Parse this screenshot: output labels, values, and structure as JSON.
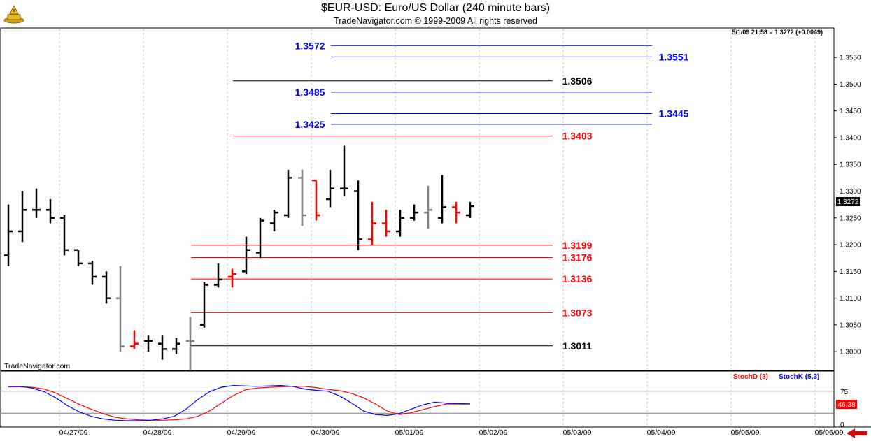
{
  "header": {
    "title": "$EUR-USD:  Euro/US Dollar  (240 minute bars)",
    "subtitle": "TradeNavigator.com © 1999-2009 All rights reserved",
    "last_quote": "5/1/09 21:58 = 1.3272 (+0.0049)",
    "watermark": "TradeNavigator.com"
  },
  "colors": {
    "up_bar": "#000000",
    "down_bar": "#ff0000",
    "neutral_bar": "#808080",
    "blue_level": "#0000ff",
    "red_level": "#ff0000",
    "black_level": "#000000",
    "stoch_d": "#ff0000",
    "stoch_k": "#0000ff",
    "price_badge_bg": "#000000",
    "stoch_badge_bg": "#ff0000"
  },
  "chart_data": [
    {
      "type": "ohlc",
      "title": "$EUR-USD:  Euro/US Dollar  (240 minute bars)",
      "x_tick_labels": [
        "04/27/09",
        "04/28/09",
        "04/29/09",
        "04/30/09",
        "05/01/09",
        "05/02/09",
        "05/03/09",
        "05/04/09",
        "05/05/09",
        "05/06/09"
      ],
      "y_tick_labels": [
        "1.3000",
        "1.3050",
        "1.3100",
        "1.3150",
        "1.3200",
        "1.3250",
        "1.3300",
        "1.3350",
        "1.3400",
        "1.3450",
        "1.3500",
        "1.3550"
      ],
      "ylim": [
        1.2965,
        1.3605
      ],
      "grid": "vertical dashed at date ticks",
      "last_price_badge": "1.3272",
      "bars": [
        {
          "o": 1.318,
          "h": 1.3275,
          "l": 1.316,
          "c": 1.3225,
          "color": "black"
        },
        {
          "o": 1.3225,
          "h": 1.33,
          "l": 1.3205,
          "c": 1.3265,
          "color": "black"
        },
        {
          "o": 1.3265,
          "h": 1.3305,
          "l": 1.325,
          "c": 1.3265,
          "color": "black"
        },
        {
          "o": 1.3265,
          "h": 1.3285,
          "l": 1.324,
          "c": 1.325,
          "color": "black"
        },
        {
          "o": 1.325,
          "h": 1.3255,
          "l": 1.318,
          "c": 1.319,
          "color": "black"
        },
        {
          "o": 1.319,
          "h": 1.319,
          "l": 1.316,
          "c": 1.3165,
          "color": "black"
        },
        {
          "o": 1.3165,
          "h": 1.317,
          "l": 1.3125,
          "c": 1.314,
          "color": "black"
        },
        {
          "o": 1.314,
          "h": 1.315,
          "l": 1.309,
          "c": 1.31,
          "color": "black"
        },
        {
          "o": 1.31,
          "h": 1.316,
          "l": 1.3,
          "c": 1.301,
          "color": "gray"
        },
        {
          "o": 1.301,
          "h": 1.304,
          "l": 1.3005,
          "c": 1.3015,
          "color": "red"
        },
        {
          "o": 1.302,
          "h": 1.303,
          "l": 1.3,
          "c": 1.302,
          "color": "black"
        },
        {
          "o": 1.3015,
          "h": 1.303,
          "l": 1.2985,
          "c": 1.3005,
          "color": "black"
        },
        {
          "o": 1.3005,
          "h": 1.3025,
          "l": 1.2995,
          "c": 1.3015,
          "color": "black"
        },
        {
          "o": 1.302,
          "h": 1.3065,
          "l": 1.2965,
          "c": 1.302,
          "color": "gray"
        },
        {
          "o": 1.305,
          "h": 1.313,
          "l": 1.3045,
          "c": 1.3125,
          "color": "black"
        },
        {
          "o": 1.3125,
          "h": 1.3165,
          "l": 1.312,
          "c": 1.3135,
          "color": "black"
        },
        {
          "o": 1.314,
          "h": 1.3155,
          "l": 1.312,
          "c": 1.3145,
          "color": "red"
        },
        {
          "o": 1.315,
          "h": 1.3215,
          "l": 1.3145,
          "c": 1.319,
          "color": "black"
        },
        {
          "o": 1.3185,
          "h": 1.325,
          "l": 1.3175,
          "c": 1.3245,
          "color": "black"
        },
        {
          "o": 1.324,
          "h": 1.3265,
          "l": 1.3225,
          "c": 1.326,
          "color": "black"
        },
        {
          "o": 1.3255,
          "h": 1.334,
          "l": 1.325,
          "c": 1.3325,
          "color": "black"
        },
        {
          "o": 1.3325,
          "h": 1.334,
          "l": 1.3235,
          "c": 1.3255,
          "color": "gray"
        },
        {
          "o": 1.332,
          "h": 1.332,
          "l": 1.3245,
          "c": 1.3255,
          "color": "red"
        },
        {
          "o": 1.3285,
          "h": 1.334,
          "l": 1.327,
          "c": 1.3305,
          "color": "black"
        },
        {
          "o": 1.3305,
          "h": 1.3385,
          "l": 1.329,
          "c": 1.3305,
          "color": "black"
        },
        {
          "o": 1.33,
          "h": 1.332,
          "l": 1.319,
          "c": 1.321,
          "color": "black"
        },
        {
          "o": 1.321,
          "h": 1.328,
          "l": 1.32,
          "c": 1.324,
          "color": "red"
        },
        {
          "o": 1.324,
          "h": 1.3265,
          "l": 1.3215,
          "c": 1.3225,
          "color": "red"
        },
        {
          "o": 1.3225,
          "h": 1.3265,
          "l": 1.3215,
          "c": 1.325,
          "color": "black"
        },
        {
          "o": 1.325,
          "h": 1.3275,
          "l": 1.3245,
          "c": 1.326,
          "color": "black"
        },
        {
          "o": 1.326,
          "h": 1.331,
          "l": 1.323,
          "c": 1.3265,
          "color": "gray"
        },
        {
          "o": 1.325,
          "h": 1.333,
          "l": 1.324,
          "c": 1.327,
          "color": "black"
        },
        {
          "o": 1.327,
          "h": 1.328,
          "l": 1.324,
          "c": 1.326,
          "color": "red"
        },
        {
          "o": 1.3255,
          "h": 1.328,
          "l": 1.325,
          "c": 1.3272,
          "color": "black"
        }
      ],
      "levels": [
        {
          "label": "1.3572",
          "value": 1.3572,
          "color": "blue",
          "label_side": "left"
        },
        {
          "label": "1.3551",
          "value": 1.3551,
          "color": "blue",
          "label_side": "right"
        },
        {
          "label": "1.3506",
          "value": 1.3506,
          "color": "black",
          "label_side": "right"
        },
        {
          "label": "1.3485",
          "value": 1.3485,
          "color": "blue",
          "label_side": "left"
        },
        {
          "label": "1.3445",
          "value": 1.3445,
          "color": "blue",
          "label_side": "right"
        },
        {
          "label": "1.3425",
          "value": 1.3425,
          "color": "blue",
          "label_side": "left"
        },
        {
          "label": "1.3403",
          "value": 1.3403,
          "color": "red",
          "label_side": "right"
        },
        {
          "label": "1.3199",
          "value": 1.3199,
          "color": "red",
          "label_side": "right"
        },
        {
          "label": "1.3176",
          "value": 1.3176,
          "color": "red",
          "label_side": "right"
        },
        {
          "label": "1.3136",
          "value": 1.3136,
          "color": "red",
          "label_side": "right"
        },
        {
          "label": "1.3073",
          "value": 1.3073,
          "color": "red",
          "label_side": "right"
        },
        {
          "label": "1.3011",
          "value": 1.3011,
          "color": "black",
          "label_side": "right"
        }
      ]
    },
    {
      "type": "line",
      "title": "",
      "ylim": [
        0,
        100
      ],
      "y_tick_labels": [
        "75",
        "0"
      ],
      "reference_lines": [
        75,
        25
      ],
      "last_value_badge": "46.38",
      "series": [
        {
          "name": "StochD (3)",
          "color": "red",
          "values": [
            85,
            85,
            84,
            80,
            71,
            58,
            45,
            34,
            24,
            16,
            12,
            10,
            9,
            9,
            10,
            12,
            18,
            30,
            48,
            65,
            78,
            82,
            84,
            85,
            86,
            86,
            83,
            79,
            76,
            70,
            60,
            46,
            30,
            22,
            26,
            33,
            40,
            46,
            46,
            46
          ]
        },
        {
          "name": "StochK (5,3)",
          "color": "blue",
          "values": [
            86,
            86,
            82,
            74,
            60,
            42,
            28,
            18,
            12,
            9,
            8,
            8,
            9,
            12,
            18,
            34,
            56,
            74,
            84,
            88,
            87,
            86,
            87,
            88,
            86,
            80,
            77,
            75,
            64,
            48,
            30,
            22,
            20,
            24,
            34,
            44,
            50,
            48,
            47,
            46
          ]
        }
      ]
    }
  ]
}
